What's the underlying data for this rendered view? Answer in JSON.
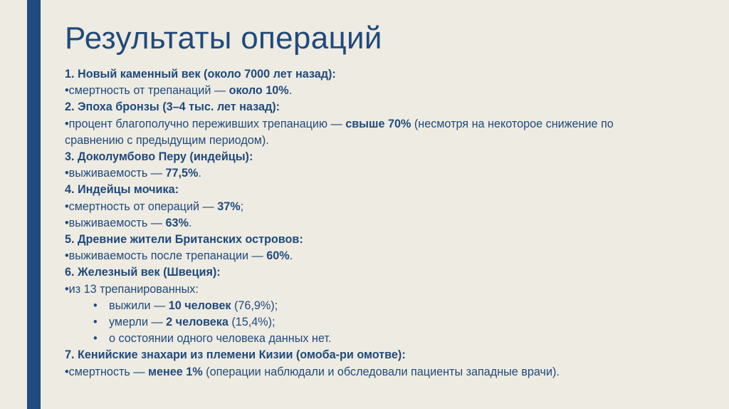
{
  "slide": {
    "title": "Результаты операций",
    "accent_color": "#1f4b7e",
    "background_color": "#eeebe2",
    "sections": [
      {
        "heading": "1. Новый каменный век (около 7000 лет назад):",
        "items": [
          {
            "bullet": "•",
            "text": "смертность от трепанаций — ",
            "bold": "около 10%",
            "after": "."
          }
        ]
      },
      {
        "heading": "2. Эпоха бронзы (3–4 тыс. лет назад):",
        "items": [
          {
            "bullet": "•",
            "text": "процент благополучно переживших трепанацию — ",
            "bold": "свыше 70%",
            "after": " (несмотря на некоторое снижение по",
            "continuation": "сравнению с предыдущим периодом)."
          }
        ]
      },
      {
        "heading": "3. Доколумбово Перу (индейцы):",
        "items": [
          {
            "bullet": "•",
            "text": "выживаемость — ",
            "bold": "77,5%",
            "after": "."
          }
        ]
      },
      {
        "heading": "4. Индейцы мочика:",
        "items": [
          {
            "bullet": "•",
            "text": "смертность от операций — ",
            "bold": "37%",
            "after": ";"
          },
          {
            "bullet": "•",
            "text": "выживаемость — ",
            "bold": "63%",
            "after": "."
          }
        ]
      },
      {
        "heading": "5. Древние жители Британских островов:",
        "items": [
          {
            "bullet": "•",
            "text": "выживаемость после трепанации — ",
            "bold": "60%",
            "after": "."
          }
        ]
      },
      {
        "heading": "6. Железный век (Швеция):",
        "items": [
          {
            "bullet": "•",
            "text": "из 13 трепанированных:",
            "bold": "",
            "after": ""
          }
        ],
        "subitems": [
          {
            "bullet": "•",
            "text": "выжили — ",
            "bold": "10 человек",
            "after": " (76,9%);"
          },
          {
            "bullet": "•",
            "text": "умерли — ",
            "bold": "2 человека",
            "after": " (15,4%);"
          },
          {
            "bullet": "•",
            "text": "о состоянии одного человека данных нет.",
            "bold": "",
            "after": ""
          }
        ]
      },
      {
        "heading": "7. Кенийские знахари из племени Кизии (омоба-ри омотве):",
        "items": [
          {
            "bullet": "•",
            "text": "смертность — ",
            "bold": "менее 1%",
            "after": " (операции наблюдали и обследовали пациенты западные врачи)."
          }
        ]
      }
    ]
  }
}
